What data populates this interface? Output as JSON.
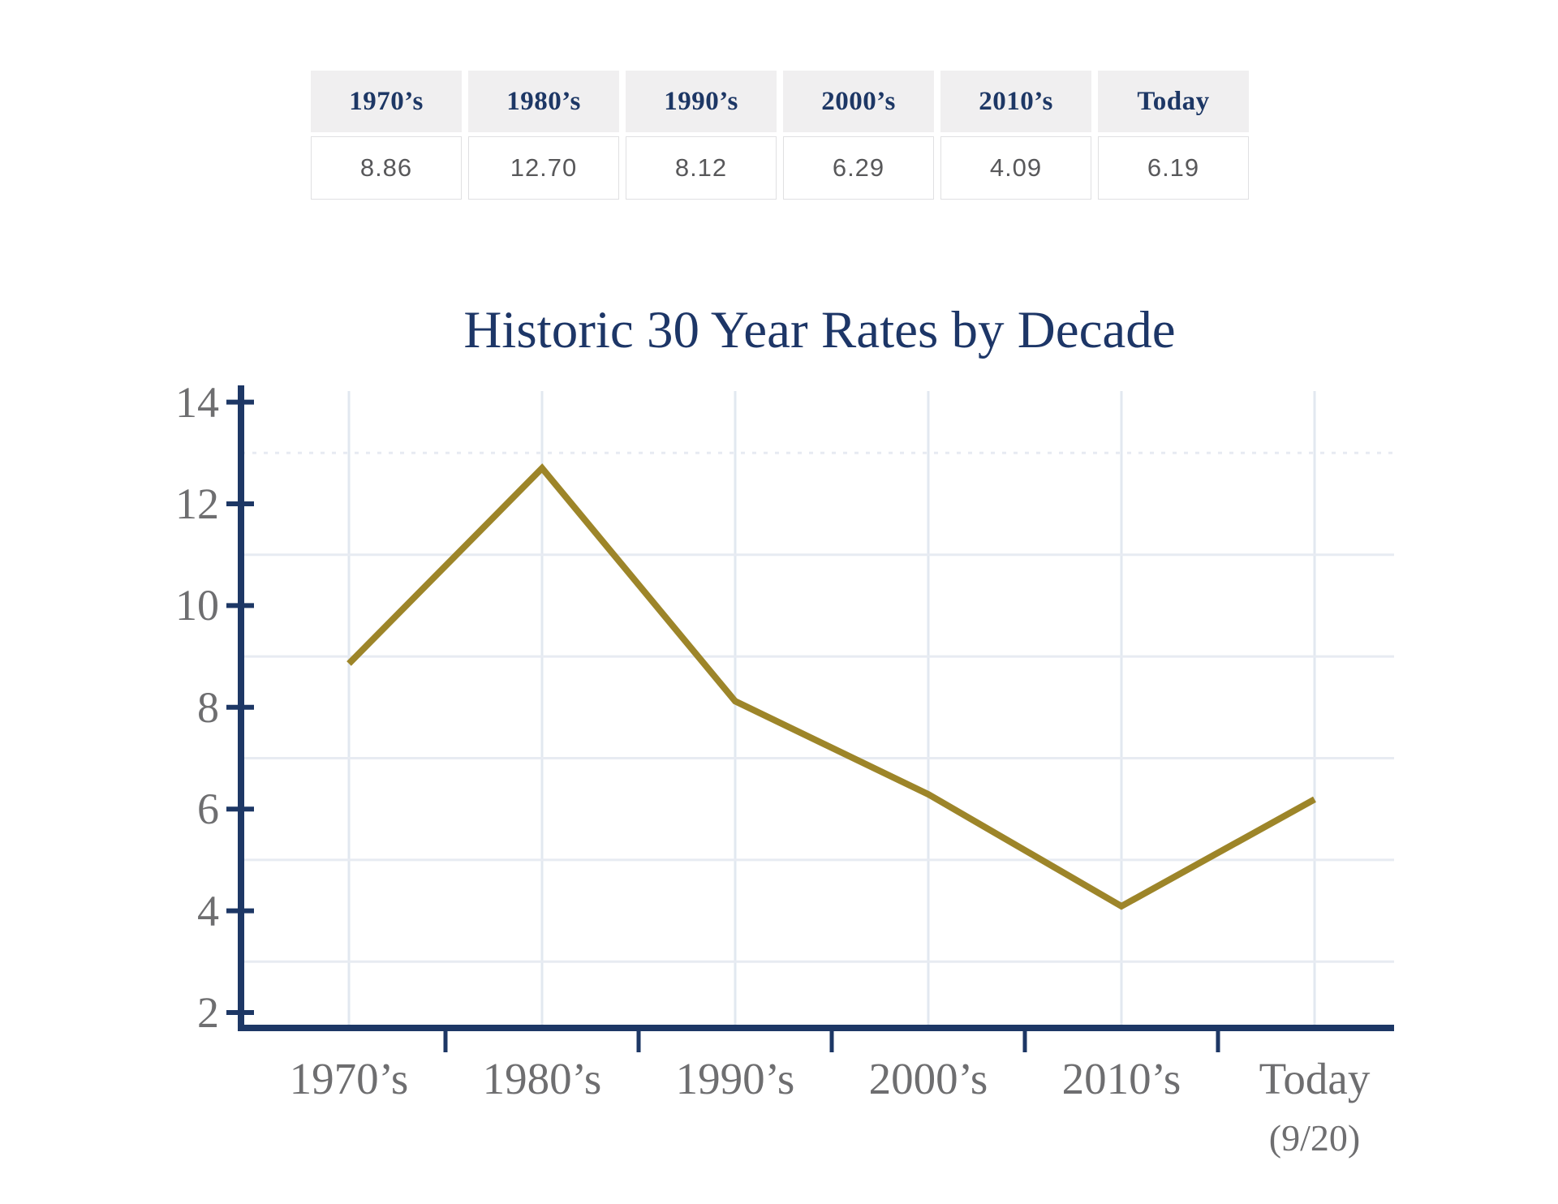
{
  "table": {
    "columns": [
      {
        "label": "1970’s",
        "value": "8.86"
      },
      {
        "label": "1980’s",
        "value": "12.70"
      },
      {
        "label": "1990’s",
        "value": "8.12"
      },
      {
        "label": "2000’s",
        "value": "6.29"
      },
      {
        "label": "2010’s",
        "value": "4.09"
      },
      {
        "label": "Today",
        "value": "6.19"
      }
    ]
  },
  "chart_data": {
    "type": "line",
    "title": "Historic 30 Year Rates by Decade",
    "categories": [
      "1970’s",
      "1980’s",
      "1990’s",
      "2000’s",
      "2010’s",
      "Today"
    ],
    "last_category_note": "(9/20)",
    "series": [
      {
        "name": "30 Year Rate",
        "values": [
          8.86,
          12.7,
          8.12,
          6.29,
          4.09,
          6.19
        ]
      }
    ],
    "yticks": [
      14,
      12,
      10,
      8,
      6,
      4,
      2
    ],
    "minor_gridlines_y": [
      13,
      11,
      9,
      7,
      5,
      3
    ],
    "ylim": [
      2,
      14
    ],
    "xlabel": "",
    "ylabel": "",
    "grid": "on",
    "legend": "none",
    "colors": {
      "line": "#9d8529",
      "axis": "#1d3765",
      "grid_horizontal": "#e7ebf2",
      "grid_vertical": "#e2e8f0",
      "tick_label": "#6e6e70",
      "title": "#1d3667"
    }
  }
}
